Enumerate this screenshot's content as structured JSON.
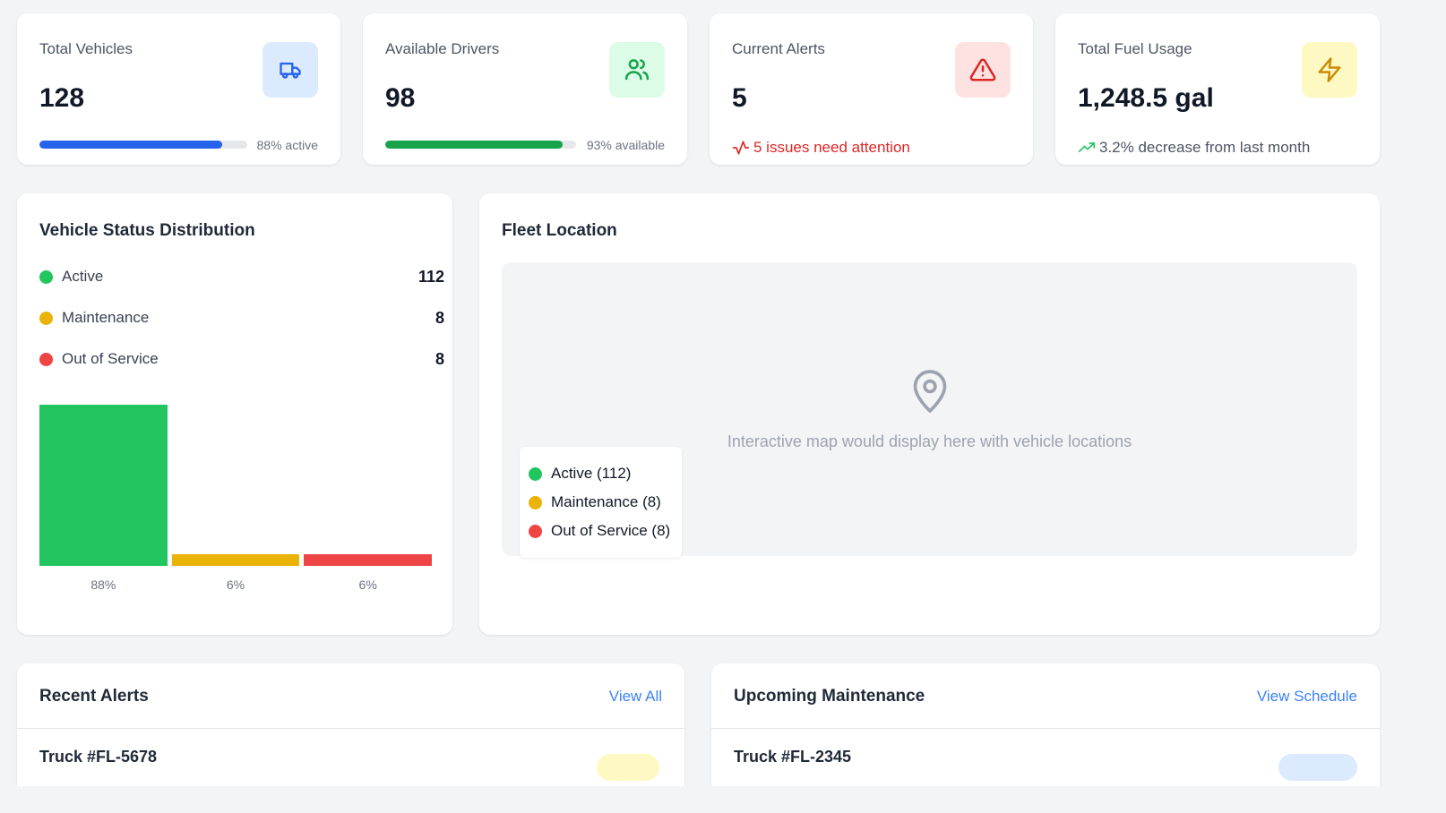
{
  "stats": [
    {
      "label": "Total Vehicles",
      "value": "128",
      "progress": 0.88,
      "caption": "88% active",
      "color": "#2563eb",
      "icon": "truck-icon"
    },
    {
      "label": "Available Drivers",
      "value": "98",
      "progress": 0.93,
      "caption": "93% available",
      "color": "#16a34a",
      "icon": "users-icon"
    },
    {
      "label": "Current Alerts",
      "value": "5",
      "note": "5 issues need attention",
      "note_color": "#dc2626",
      "icon": "alert-triangle-icon"
    },
    {
      "label": "Total Fuel Usage",
      "value": "1,248.5 gal",
      "note": "3.2% decrease from last month",
      "note_color": "#4b5563",
      "icon": "zap-icon"
    }
  ],
  "status_distribution": {
    "title": "Vehicle Status Distribution",
    "items": [
      {
        "label": "Active",
        "count": "112",
        "color": "#22c55e"
      },
      {
        "label": "Maintenance",
        "count": "8",
        "color": "#eab308"
      },
      {
        "label": "Out of Service",
        "count": "8",
        "color": "#ef4444"
      }
    ]
  },
  "chart_data": {
    "type": "bar",
    "categories": [
      "Active",
      "Maintenance",
      "Out of Service"
    ],
    "values": [
      112,
      8,
      8
    ],
    "percent_labels": [
      "88%",
      "6%",
      "6%"
    ],
    "colors": [
      "#22c55e",
      "#eab308",
      "#ef4444"
    ]
  },
  "fleet_location": {
    "title": "Fleet Location",
    "caption": "Interactive map would display here with vehicle locations",
    "legend": [
      {
        "label": "Active (112)",
        "color": "#22c55e"
      },
      {
        "label": "Maintenance (8)",
        "color": "#eab308"
      },
      {
        "label": "Out of Service (8)",
        "color": "#ef4444"
      }
    ],
    "icon": "map-pin-icon"
  },
  "recent_alerts": {
    "title": "Recent Alerts",
    "link": "View All",
    "first_item": "Truck #FL-5678"
  },
  "upcoming_maintenance": {
    "title": "Upcoming Maintenance",
    "link": "View Schedule",
    "first_item": "Truck #FL-2345"
  }
}
